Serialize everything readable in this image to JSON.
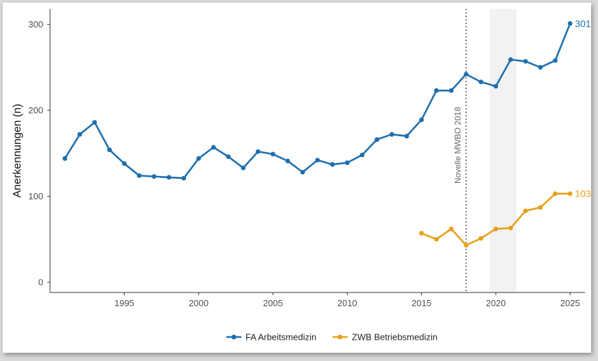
{
  "chart_data": {
    "type": "line",
    "title": "",
    "xlabel": "",
    "ylabel": "Anerkennungen (n)",
    "xlim": [
      1990,
      2026
    ],
    "ylim": [
      -12,
      318
    ],
    "x_ticks": [
      1995,
      2000,
      2005,
      2010,
      2015,
      2020,
      2025
    ],
    "x_tick_labels": [
      "1995",
      "2000",
      "2005",
      "2010",
      "2015",
      "2020",
      "2025"
    ],
    "y_ticks": [
      0,
      100,
      200,
      300
    ],
    "y_tick_labels": [
      "0",
      "100",
      "200",
      "300"
    ],
    "grid": false,
    "legend_position": "bottom",
    "series": [
      {
        "name": "FA Arbeitsmedizin",
        "color": "#1f6fae",
        "end_label": "301",
        "x": [
          1991,
          1992,
          1993,
          1994,
          1995,
          1996,
          1997,
          1998,
          1999,
          2000,
          2001,
          2002,
          2003,
          2004,
          2005,
          2006,
          2007,
          2008,
          2009,
          2010,
          2011,
          2012,
          2013,
          2014,
          2015,
          2016,
          2017,
          2018,
          2019,
          2020,
          2021,
          2022,
          2023,
          2024,
          2025
        ],
        "y": [
          144,
          172,
          186,
          154,
          138,
          124,
          123,
          122,
          121,
          144,
          157,
          146,
          133,
          152,
          149,
          141,
          128,
          142,
          137,
          139,
          148,
          166,
          172,
          170,
          189,
          223,
          223,
          242,
          233,
          228,
          259,
          257,
          250,
          258,
          301
        ]
      },
      {
        "name": "ZWB Betriebsmedizin",
        "color": "#e6a118",
        "end_label": "103",
        "x": [
          2015,
          2016,
          2017,
          2018,
          2019,
          2020,
          2021,
          2022,
          2023,
          2024,
          2025
        ],
        "y": [
          57,
          50,
          62,
          43,
          51,
          62,
          63,
          83,
          87,
          103,
          103
        ]
      }
    ],
    "annotations": [
      {
        "type": "vline",
        "x": 2018,
        "style": "dotted",
        "label": "Novelle MWBO 2018"
      },
      {
        "type": "shaded_band",
        "x_start": 2019.6,
        "x_end": 2021.4,
        "color": "#f2f2f2"
      }
    ]
  }
}
